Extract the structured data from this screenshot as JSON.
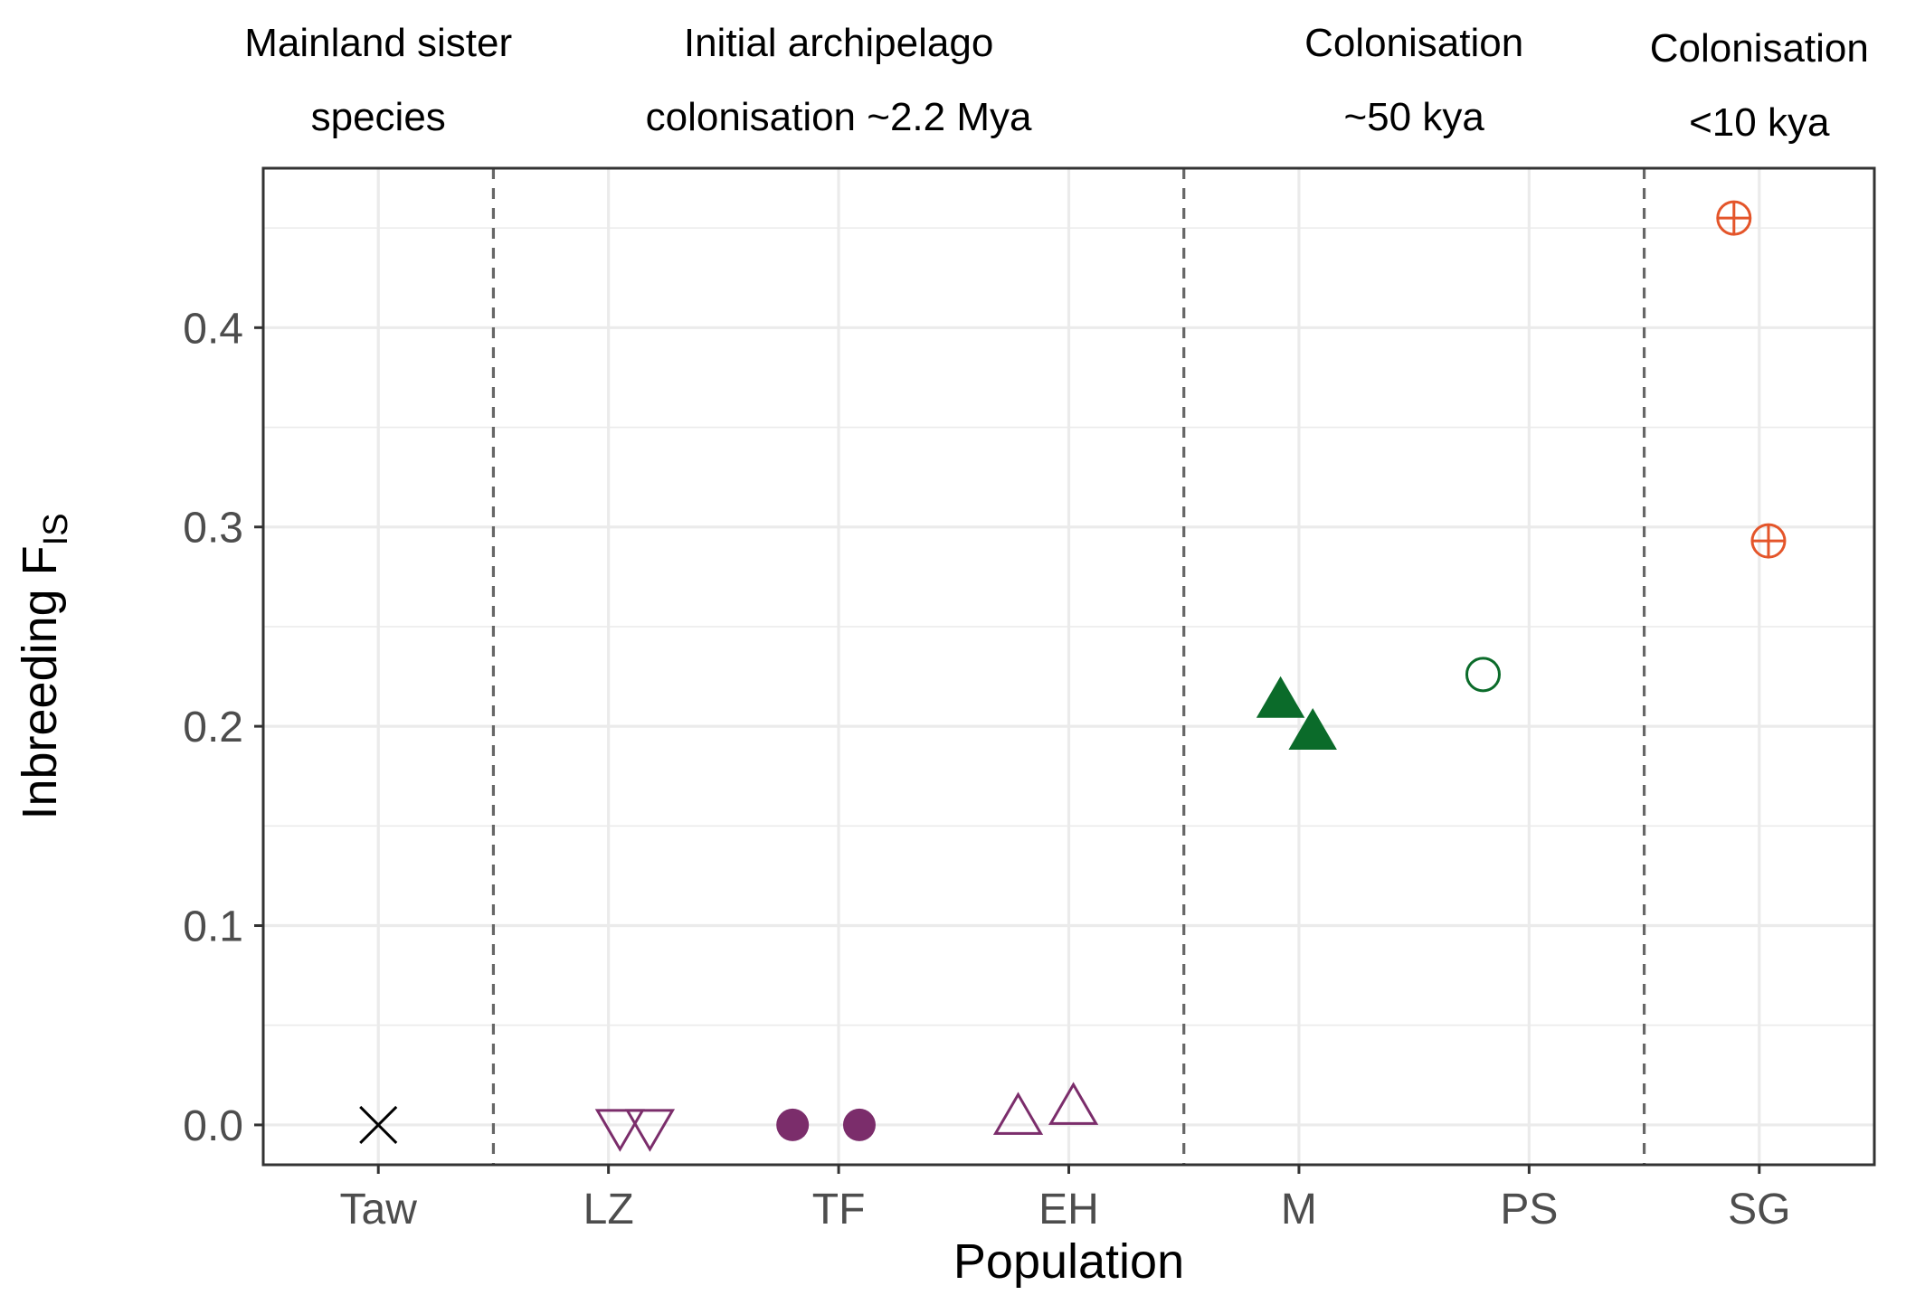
{
  "chart_data": {
    "type": "scatter",
    "title": "",
    "xlabel": "Population",
    "ylabel": "Inbreeding F",
    "ylabel_subscript": "IS",
    "categories": [
      "Taw",
      "LZ",
      "TF",
      "EH",
      "M",
      "PS",
      "SG"
    ],
    "ylim": [
      -0.02,
      0.48
    ],
    "yticks": [
      0.0,
      0.1,
      0.2,
      0.3,
      0.4
    ],
    "ytick_labels": [
      "0.0",
      "0.1",
      "0.2",
      "0.3",
      "0.4"
    ],
    "grid": true,
    "group_labels": [
      {
        "line1": "Mainland sister",
        "line2": "species"
      },
      {
        "line1": "Initial archipelago",
        "line2": "colonisation ~2.2 Mya"
      },
      {
        "line1": "Colonisation",
        "line2": "~50 kya"
      },
      {
        "line1": "Colonisation",
        "line2": "<10 kya"
      }
    ],
    "points": [
      {
        "population": "Taw",
        "offset": 0.0,
        "y": 0.0,
        "shape": "cross",
        "color": "#000000"
      },
      {
        "population": "LZ",
        "offset": 0.05,
        "y": -0.002,
        "shape": "triangle-down-open",
        "color": "#7b2d6b"
      },
      {
        "population": "LZ",
        "offset": 0.18,
        "y": -0.002,
        "shape": "triangle-down-open",
        "color": "#7b2d6b"
      },
      {
        "population": "TF",
        "offset": -0.2,
        "y": 0.0,
        "shape": "circle-filled",
        "color": "#7b2d6b"
      },
      {
        "population": "TF",
        "offset": 0.09,
        "y": 0.0,
        "shape": "circle-filled",
        "color": "#7b2d6b"
      },
      {
        "population": "EH",
        "offset": -0.22,
        "y": 0.005,
        "shape": "triangle-up-open",
        "color": "#7b2d6b"
      },
      {
        "population": "EH",
        "offset": 0.02,
        "y": 0.01,
        "shape": "triangle-up-open",
        "color": "#7b2d6b"
      },
      {
        "population": "M",
        "offset": -0.08,
        "y": 0.214,
        "shape": "triangle-up-filled",
        "color": "#0b6b2a"
      },
      {
        "population": "M",
        "offset": 0.06,
        "y": 0.198,
        "shape": "triangle-up-filled",
        "color": "#0b6b2a"
      },
      {
        "population": "PS",
        "offset": -0.2,
        "y": 0.226,
        "shape": "circle-open",
        "color": "#0b6b2a"
      },
      {
        "population": "SG",
        "offset": -0.11,
        "y": 0.455,
        "shape": "circle-plus",
        "color": "#e4552a"
      },
      {
        "population": "SG",
        "offset": 0.04,
        "y": 0.293,
        "shape": "circle-plus",
        "color": "#e4552a"
      }
    ],
    "group_dividers_after": [
      "Taw",
      "EH",
      "PS"
    ]
  }
}
